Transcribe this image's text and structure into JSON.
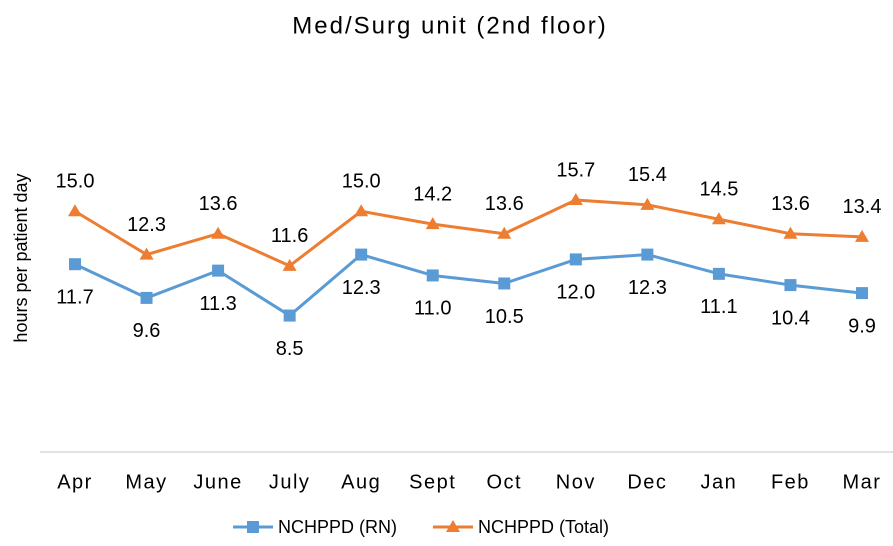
{
  "chart_data": {
    "type": "line",
    "title": "Med/Surg unit (2nd floor)",
    "y_label": "hours per patient day",
    "categories": [
      "Apr",
      "May",
      "June",
      "July",
      "Aug",
      "Sept",
      "Oct",
      "Nov",
      "Dec",
      "Jan",
      "Feb",
      "Mar"
    ],
    "ylim": [
      0,
      20
    ],
    "legend": "bottom",
    "series": [
      {
        "name": "NCHPPD (RN)",
        "color": "#5b9bd5",
        "marker": "square",
        "values": [
          11.7,
          9.6,
          11.3,
          8.5,
          12.3,
          11,
          10.5,
          12,
          12.3,
          11.1,
          10.4,
          9.9
        ],
        "value_labels": [
          "11.7",
          "9.6",
          "11.3",
          "8.5",
          "12.3",
          "11.0",
          "10.5",
          "12.0",
          "12.3",
          "11.1",
          "10.4",
          "9.9"
        ],
        "label_position": "below"
      },
      {
        "name": "NCHPPD (Total)",
        "color": "#ed7d31",
        "marker": "triangle",
        "values": [
          15,
          12.3,
          13.6,
          11.6,
          15,
          14.2,
          13.6,
          15.7,
          15.4,
          14.5,
          13.6,
          13.4
        ],
        "value_labels": [
          "15.0",
          "12.3",
          "13.6",
          "11.6",
          "15.0",
          "14.2",
          "13.6",
          "15.7",
          "15.4",
          "14.5",
          "13.6",
          "13.4"
        ],
        "label_position": "above"
      }
    ]
  }
}
